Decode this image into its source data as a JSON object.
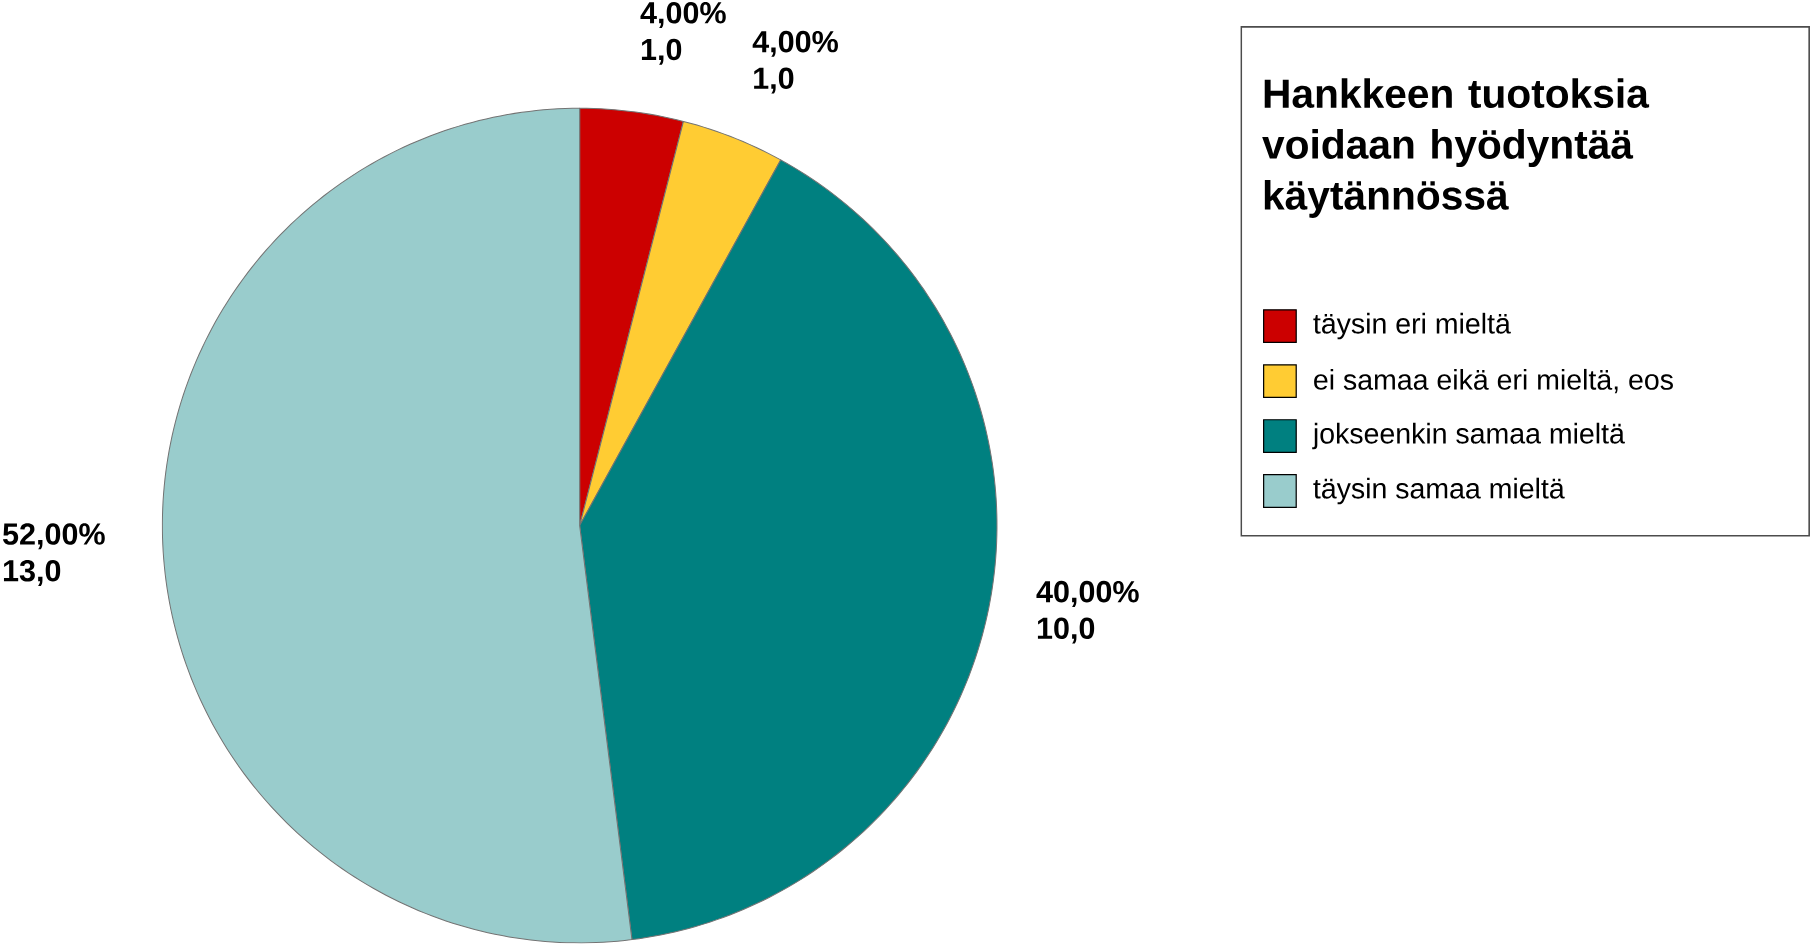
{
  "chart_data": {
    "type": "pie",
    "legend_title": "Hankkeen tuotoksia voidaan hyödyntää käytännössä",
    "legend": "right",
    "categories": [
      "täysin eri mieltä",
      "ei samaa eikä eri mieltä, eos",
      "jokseenkin samaa mieltä",
      "täysin samaa mieltä"
    ],
    "values": [
      1,
      1,
      10,
      13
    ],
    "colors": [
      "#cc0000",
      "#ffcc33",
      "#008080",
      "#99cccc"
    ],
    "value_labels": [
      "4,00% 1,0",
      "4,00% 1,0",
      "40,00% 10,0",
      "52,00% 13,0"
    ]
  }
}
